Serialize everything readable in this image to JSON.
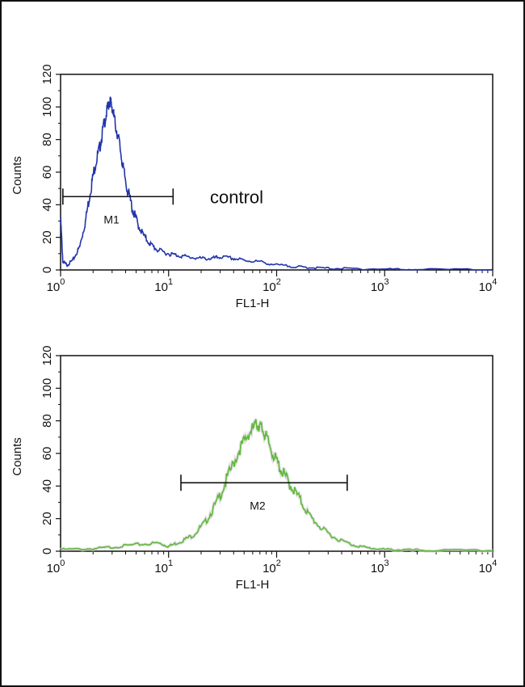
{
  "chart_data": [
    {
      "type": "line",
      "xlabel": "FL1-H",
      "ylabel": "Counts",
      "xscale": "log",
      "xlim": [
        1,
        10000
      ],
      "ylim": [
        0,
        120
      ],
      "x_tick_labels": [
        {
          "base": "10",
          "exp": "0"
        },
        {
          "base": "10",
          "exp": "1"
        },
        {
          "base": "10",
          "exp": "2"
        },
        {
          "base": "10",
          "exp": "3"
        },
        {
          "base": "10",
          "exp": "4"
        }
      ],
      "y_ticks": [
        0,
        20,
        40,
        60,
        80,
        100,
        120
      ],
      "y_tick_labels": [
        "0",
        "20",
        "40",
        "60",
        "80",
        "100",
        "120"
      ],
      "annotation": "control",
      "line_color": "#2233aa",
      "series": [
        {
          "x": [
            1,
            1.05,
            1.15,
            1.3,
            1.5,
            1.7,
            1.9,
            2.1,
            2.3,
            2.5,
            2.7,
            2.85,
            3.0,
            3.2,
            3.5,
            3.8,
            4.2,
            4.7,
            5.2,
            6,
            7,
            8,
            10,
            12,
            15,
            20,
            25,
            30,
            40,
            50,
            70,
            100,
            150,
            200,
            300,
            500,
            1000,
            2000,
            10000
          ],
          "y": [
            32,
            5,
            3,
            6,
            14,
            30,
            50,
            65,
            75,
            88,
            98,
            104,
            100,
            90,
            78,
            62,
            48,
            36,
            28,
            20,
            15,
            12,
            10,
            9,
            8,
            7,
            7,
            8,
            7,
            6,
            5,
            3,
            2,
            1.5,
            1,
            0.8,
            0.5,
            0.3,
            0.2
          ]
        }
      ],
      "markers": [
        {
          "label": "M1",
          "x_start": 1.05,
          "x_end": 11,
          "y": 45
        }
      ]
    },
    {
      "type": "line",
      "xlabel": "FL1-H",
      "ylabel": "Counts",
      "xscale": "log",
      "xlim": [
        1,
        10000
      ],
      "ylim": [
        0,
        120
      ],
      "x_tick_labels": [
        {
          "base": "10",
          "exp": "0"
        },
        {
          "base": "10",
          "exp": "1"
        },
        {
          "base": "10",
          "exp": "2"
        },
        {
          "base": "10",
          "exp": "3"
        },
        {
          "base": "10",
          "exp": "4"
        }
      ],
      "y_ticks": [
        0,
        20,
        40,
        60,
        80,
        100,
        120
      ],
      "y_tick_labels": [
        "0",
        "20",
        "40",
        "60",
        "80",
        "100",
        "120"
      ],
      "line_color": "#5fb83a",
      "series": [
        {
          "x": [
            1,
            2,
            3,
            5,
            8,
            10,
            13,
            17,
            22,
            28,
            35,
            45,
            55,
            65,
            72,
            80,
            95,
            110,
            130,
            160,
            200,
            260,
            350,
            500,
            700,
            1000,
            1500,
            2500,
            10000
          ],
          "y": [
            1,
            1.5,
            2.5,
            4,
            5,
            3,
            6,
            10,
            18,
            30,
            45,
            62,
            72,
            78,
            76,
            70,
            58,
            50,
            42,
            33,
            22,
            14,
            8,
            4,
            2,
            1,
            0.8,
            0.5,
            0.3
          ]
        }
      ],
      "markers": [
        {
          "label": "M2",
          "x_start": 13,
          "x_end": 450,
          "y": 42
        }
      ]
    }
  ]
}
